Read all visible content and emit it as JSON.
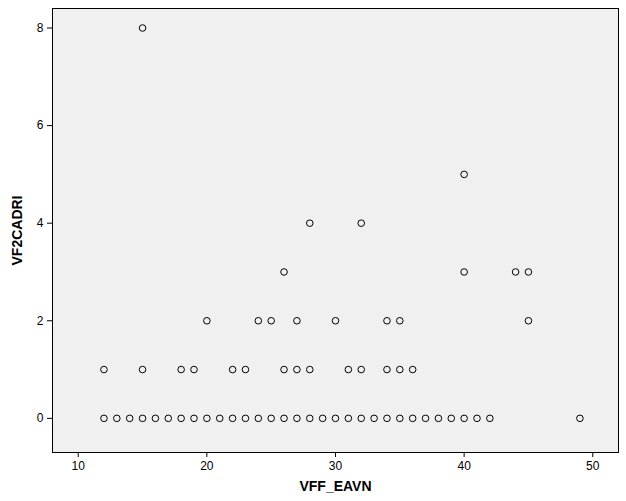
{
  "chart_data": {
    "type": "scatter",
    "xlabel": "VFF_EAVN",
    "ylabel": "VF2CADRI",
    "x": [
      12,
      13,
      14,
      15,
      16,
      17,
      18,
      19,
      20,
      21,
      22,
      23,
      24,
      25,
      26,
      27,
      28,
      29,
      30,
      31,
      32,
      33,
      34,
      35,
      36,
      37,
      38,
      39,
      40,
      41,
      42,
      49,
      12,
      15,
      18,
      19,
      22,
      23,
      26,
      27,
      28,
      31,
      32,
      34,
      35,
      36,
      20,
      24,
      25,
      27,
      30,
      34,
      35,
      45,
      26,
      40,
      44,
      45,
      28,
      32,
      40,
      15
    ],
    "y": [
      0,
      0,
      0,
      0,
      0,
      0,
      0,
      0,
      0,
      0,
      0,
      0,
      0,
      0,
      0,
      0,
      0,
      0,
      0,
      0,
      0,
      0,
      0,
      0,
      0,
      0,
      0,
      0,
      0,
      0,
      0,
      0,
      1,
      1,
      1,
      1,
      1,
      1,
      1,
      1,
      1,
      1,
      1,
      1,
      1,
      1,
      2,
      2,
      2,
      2,
      2,
      2,
      2,
      2,
      3,
      3,
      3,
      3,
      4,
      4,
      5,
      8
    ],
    "xlim": [
      8,
      52
    ],
    "ylim": [
      -0.7,
      8.4
    ],
    "xticks": [
      10,
      20,
      30,
      40,
      50
    ],
    "yticks": [
      0,
      2,
      4,
      6,
      8
    ],
    "marker": "circle",
    "color": "#000000",
    "grid": false
  }
}
